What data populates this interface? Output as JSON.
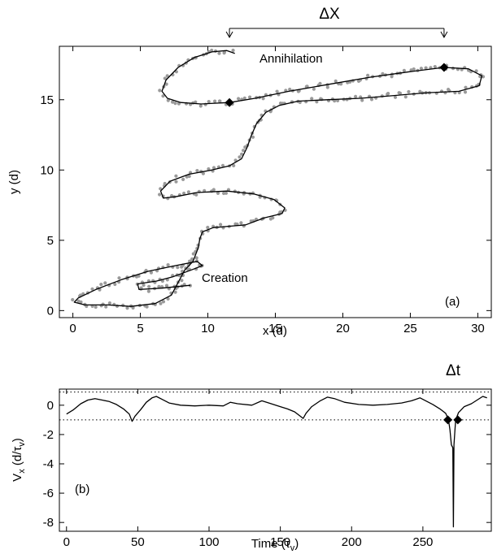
{
  "chart_data": [
    {
      "id": "a",
      "type": "scatter",
      "panel_label": "(a)",
      "xlabel": "x (d)",
      "ylabel": "y (d)",
      "xlim": [
        -1,
        31
      ],
      "ylim": [
        -0.5,
        18.8
      ],
      "xticks": [
        0,
        5,
        10,
        15,
        20,
        25,
        30
      ],
      "yticks": [
        0,
        5,
        10,
        15
      ],
      "annotations": {
        "delta_x": "ΔX",
        "annihilation": "Annihilation",
        "creation": "Creation"
      },
      "delta_x_span": [
        11.6,
        27.5
      ],
      "series": [
        {
          "style": "line",
          "color": "#000000",
          "points": [
            [
              8.7,
              1.8
            ],
            [
              6.6,
              1.6
            ],
            [
              4.9,
              1.5
            ],
            [
              4.8,
              1.9
            ],
            [
              6.2,
              2.1
            ],
            [
              7.4,
              2.4
            ],
            [
              8.8,
              2.9
            ],
            [
              9.6,
              3.2
            ],
            [
              9.2,
              3.5
            ],
            [
              7.6,
              3.2
            ],
            [
              5.6,
              2.8
            ],
            [
              3.6,
              2.2
            ],
            [
              1.7,
              1.5
            ],
            [
              0.4,
              0.9
            ],
            [
              0.1,
              0.6
            ],
            [
              0.9,
              0.4
            ],
            [
              2.6,
              0.4
            ],
            [
              4.3,
              0.3
            ],
            [
              6.1,
              0.5
            ],
            [
              7.3,
              1.1
            ],
            [
              7.8,
              2.0
            ],
            [
              8.3,
              2.9
            ],
            [
              8.9,
              3.5
            ],
            [
              9.3,
              4.5
            ],
            [
              9.4,
              5.1
            ],
            [
              9.6,
              5.6
            ],
            [
              10.4,
              5.9
            ],
            [
              11.6,
              6.0
            ],
            [
              12.8,
              6.1
            ],
            [
              14.2,
              6.6
            ],
            [
              15.5,
              6.9
            ],
            [
              15.7,
              7.3
            ],
            [
              14.9,
              7.9
            ],
            [
              13.4,
              8.3
            ],
            [
              11.4,
              8.5
            ],
            [
              9.2,
              8.4
            ],
            [
              7.6,
              8.1
            ],
            [
              6.7,
              8.0
            ],
            [
              6.5,
              8.5
            ],
            [
              7.2,
              9.2
            ],
            [
              8.6,
              9.7
            ],
            [
              10.3,
              10.0
            ],
            [
              11.6,
              10.3
            ],
            [
              12.5,
              10.8
            ],
            [
              12.9,
              11.6
            ],
            [
              13.2,
              12.4
            ],
            [
              13.6,
              13.3
            ],
            [
              14.3,
              14.1
            ],
            [
              15.3,
              14.6
            ],
            [
              16.7,
              14.9
            ],
            [
              18.8,
              15.0
            ],
            [
              21.3,
              15.1
            ],
            [
              23.8,
              15.3
            ],
            [
              26.3,
              15.5
            ],
            [
              28.6,
              15.6
            ],
            [
              30.1,
              16.0
            ],
            [
              30.3,
              16.7
            ],
            [
              29.3,
              17.2
            ],
            [
              27.5,
              17.3
            ],
            [
              25.0,
              17.0
            ],
            [
              22.0,
              16.6
            ],
            [
              19.0,
              16.1
            ],
            [
              16.0,
              15.6
            ],
            [
              13.5,
              15.1
            ],
            [
              11.6,
              14.8
            ],
            [
              9.5,
              14.7
            ],
            [
              8.0,
              14.8
            ],
            [
              7.0,
              15.1
            ],
            [
              6.6,
              15.6
            ],
            [
              6.9,
              16.4
            ],
            [
              7.8,
              17.3
            ],
            [
              9.0,
              18.0
            ],
            [
              10.3,
              18.4
            ],
            [
              11.4,
              18.5
            ],
            [
              12.0,
              18.3
            ]
          ]
        },
        {
          "style": "markers",
          "color": "#000000",
          "marker": "diamond",
          "points": [
            [
              11.6,
              14.8
            ],
            [
              27.5,
              17.3
            ]
          ]
        }
      ]
    },
    {
      "id": "b",
      "type": "line",
      "panel_label": "(b)",
      "xlabel_main": "Time (τ",
      "xlabel_sub": "v",
      "xlabel_close": ")",
      "ylabel_main": "V",
      "ylabel_sub": "x",
      "ylabel_rest": " (d/τ",
      "ylabel_sub2": "v",
      "ylabel_close": ")",
      "delta_t": "Δt",
      "xlim": [
        -5,
        298
      ],
      "ylim": [
        -8.6,
        1.1
      ],
      "xticks": [
        0,
        50,
        100,
        150,
        200,
        250
      ],
      "yticks": [
        0,
        -2,
        -4,
        -6,
        -8
      ],
      "dotted_lines": [
        0.9,
        -1.0
      ],
      "series": [
        {
          "style": "line",
          "color": "#000000",
          "points": [
            [
              0,
              -0.6
            ],
            [
              5,
              -0.3
            ],
            [
              10,
              0.1
            ],
            [
              15,
              0.35
            ],
            [
              20,
              0.45
            ],
            [
              25,
              0.35
            ],
            [
              30,
              0.25
            ],
            [
              35,
              0.05
            ],
            [
              40,
              -0.25
            ],
            [
              44,
              -0.6
            ],
            [
              46,
              -1.1
            ],
            [
              48,
              -0.75
            ],
            [
              52,
              -0.3
            ],
            [
              56,
              0.2
            ],
            [
              60,
              0.5
            ],
            [
              63,
              0.6
            ],
            [
              67,
              0.4
            ],
            [
              72,
              0.15
            ],
            [
              80,
              0.0
            ],
            [
              90,
              -0.05
            ],
            [
              100,
              0.0
            ],
            [
              110,
              -0.05
            ],
            [
              115,
              0.2
            ],
            [
              120,
              0.1
            ],
            [
              130,
              0.0
            ],
            [
              137,
              0.3
            ],
            [
              142,
              0.15
            ],
            [
              150,
              -0.1
            ],
            [
              155,
              -0.25
            ],
            [
              160,
              -0.45
            ],
            [
              164,
              -0.75
            ],
            [
              166,
              -0.9
            ],
            [
              168,
              -0.55
            ],
            [
              172,
              -0.1
            ],
            [
              178,
              0.3
            ],
            [
              183,
              0.55
            ],
            [
              188,
              0.45
            ],
            [
              195,
              0.2
            ],
            [
              205,
              0.05
            ],
            [
              215,
              0.0
            ],
            [
              225,
              0.05
            ],
            [
              235,
              0.15
            ],
            [
              242,
              0.3
            ],
            [
              248,
              0.5
            ],
            [
              252,
              0.3
            ],
            [
              257,
              0.05
            ],
            [
              262,
              -0.25
            ],
            [
              266,
              -0.55
            ],
            [
              268,
              -1.0
            ],
            [
              269,
              -1.7
            ],
            [
              270,
              -2.7
            ],
            [
              271,
              -2.9
            ],
            [
              271.4,
              -8.3
            ],
            [
              271.8,
              -2.7
            ],
            [
              272.5,
              -1.7
            ],
            [
              273,
              -1.0
            ],
            [
              275,
              -0.5
            ],
            [
              279,
              -0.1
            ],
            [
              284,
              0.1
            ],
            [
              288,
              0.35
            ],
            [
              292,
              0.6
            ],
            [
              295,
              0.5
            ]
          ]
        },
        {
          "style": "markers",
          "color": "#000000",
          "marker": "diamond",
          "points": [
            [
              267.5,
              -1.0
            ],
            [
              274.5,
              -1.0
            ]
          ]
        }
      ]
    }
  ]
}
